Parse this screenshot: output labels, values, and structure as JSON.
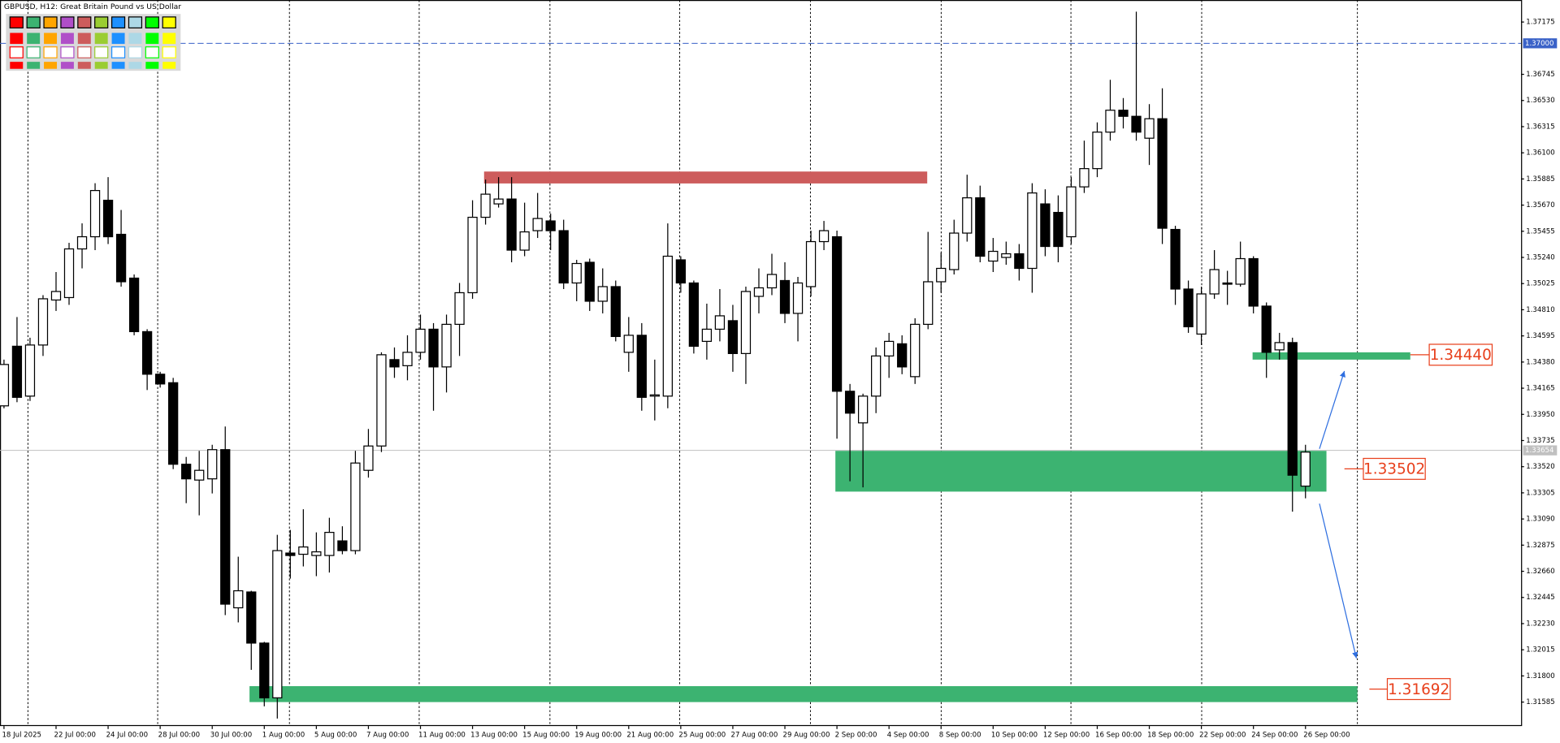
{
  "chart_data": {
    "type": "candlestick",
    "title": "GBPUSD, H12:  Great Britain Pound vs US Dollar",
    "categories": [
      "18 Jul 2025",
      null,
      null,
      null,
      "22 Jul 00:00",
      null,
      null,
      null,
      "24 Jul 00:00",
      null,
      null,
      null,
      "28 Jul 00:00",
      null,
      null,
      null,
      "30 Jul 00:00",
      null,
      null,
      null,
      "1 Aug 00:00",
      null,
      null,
      null,
      "5 Aug 00:00",
      null,
      null,
      null,
      "7 Aug 00:00",
      null,
      null,
      null,
      "11 Aug 00:00",
      null,
      null,
      null,
      "13 Aug 00:00",
      null,
      null,
      null,
      "15 Aug 00:00",
      null,
      null,
      null,
      "19 Aug 00:00",
      null,
      null,
      null,
      "21 Aug 00:00",
      null,
      null,
      null,
      "25 Aug 00:00",
      null,
      null,
      null,
      "27 Aug 00:00",
      null,
      null,
      null,
      "29 Aug 00:00",
      null,
      null,
      null,
      "2 Sep 00:00",
      null,
      null,
      null,
      "4 Sep 00:00",
      null,
      null,
      null,
      "8 Sep 00:00",
      null,
      null,
      null,
      "10 Sep 00:00",
      null,
      null,
      null,
      "12 Sep 00:00",
      null,
      null,
      null,
      "16 Sep 00:00",
      null,
      null,
      null,
      "18 Sep 00:00",
      null,
      null,
      null,
      "22 Sep 00:00",
      null,
      null,
      null,
      "24 Sep 00:00",
      null,
      null,
      null,
      "26 Sep 00:00"
    ],
    "open": [
      1.3402,
      1.3451,
      1.341,
      1.3452,
      1.3489,
      1.3491,
      1.3531,
      1.3541,
      1.3571,
      1.3543,
      1.3507,
      1.3463,
      1.3428,
      1.3421,
      1.3354,
      1.3341,
      1.3342,
      1.3366,
      1.3236,
      1.3249,
      1.3207,
      1.3162,
      1.3281,
      1.328,
      1.3279,
      1.3279,
      1.3291,
      1.3283,
      1.3349,
      1.3369,
      1.344,
      1.3435,
      1.3446,
      1.3465,
      1.3434,
      1.3469,
      1.3495,
      1.3557,
      1.3568,
      1.3572,
      1.353,
      1.3546,
      1.3554,
      1.3546,
      1.3503,
      1.352,
      1.3488,
      1.35,
      1.3446,
      1.346,
      1.341,
      1.341,
      1.3522,
      1.3503,
      1.3455,
      1.3465,
      1.3472,
      1.3445,
      1.3492,
      1.3499,
      1.3505,
      1.3478,
      1.35,
      1.3537,
      1.3541,
      1.3414,
      1.3388,
      1.341,
      1.3443,
      1.3453,
      1.3426,
      1.3469,
      1.3504,
      1.3514,
      1.3544,
      1.3573,
      1.3521,
      1.3524,
      1.3527,
      1.3515,
      1.3568,
      1.3561,
      1.3541,
      1.3582,
      1.3597,
      1.3627,
      1.3645,
      1.364,
      1.3622,
      1.3638,
      1.3547,
      1.3498,
      1.3461,
      1.3494,
      1.3503,
      1.3502,
      1.3523,
      1.3484,
      1.3448,
      1.3454,
      1.3336
    ],
    "high": [
      1.344,
      1.3475,
      1.3458,
      1.3493,
      1.3512,
      1.3536,
      1.3552,
      1.3585,
      1.359,
      1.3563,
      1.351,
      1.3465,
      1.343,
      1.3425,
      1.336,
      1.3365,
      1.337,
      1.3385,
      1.3278,
      1.325,
      1.3208,
      1.3296,
      1.33,
      1.3317,
      1.3298,
      1.331,
      1.3303,
      1.3365,
      1.3383,
      1.3446,
      1.345,
      1.346,
      1.3477,
      1.347,
      1.3477,
      1.3503,
      1.3571,
      1.3588,
      1.359,
      1.359,
      1.3569,
      1.3577,
      1.356,
      1.3555,
      1.3522,
      1.3523,
      1.3515,
      1.3505,
      1.3475,
      1.347,
      1.344,
      1.3552,
      1.3525,
      1.3505,
      1.3486,
      1.3498,
      1.3485,
      1.35,
      1.3515,
      1.3527,
      1.352,
      1.3508,
      1.3546,
      1.3554,
      1.3546,
      1.342,
      1.3412,
      1.345,
      1.3462,
      1.346,
      1.3474,
      1.3545,
      1.3528,
      1.3555,
      1.3592,
      1.3583,
      1.354,
      1.3537,
      1.3535,
      1.3585,
      1.358,
      1.3575,
      1.359,
      1.362,
      1.3635,
      1.367,
      1.3655,
      1.3726,
      1.365,
      1.3663,
      1.355,
      1.3505,
      1.35,
      1.353,
      1.3513,
      1.3537,
      1.3525,
      1.3487,
      1.3462,
      1.3458,
      1.337
    ],
    "low": [
      1.34,
      1.3405,
      1.3406,
      1.3443,
      1.348,
      1.3485,
      1.3515,
      1.353,
      1.3535,
      1.35,
      1.346,
      1.3415,
      1.3417,
      1.335,
      1.3322,
      1.3312,
      1.333,
      1.323,
      1.3224,
      1.3185,
      1.3155,
      1.3145,
      1.326,
      1.327,
      1.3262,
      1.3265,
      1.328,
      1.328,
      1.3343,
      1.3364,
      1.3425,
      1.3423,
      1.344,
      1.3398,
      1.3413,
      1.3443,
      1.349,
      1.3551,
      1.3565,
      1.352,
      1.3525,
      1.354,
      1.353,
      1.3498,
      1.3488,
      1.348,
      1.3478,
      1.3455,
      1.343,
      1.3398,
      1.339,
      1.34,
      1.3495,
      1.3445,
      1.344,
      1.3455,
      1.343,
      1.342,
      1.3478,
      1.3493,
      1.347,
      1.3455,
      1.3492,
      1.353,
      1.3375,
      1.334,
      1.3335,
      1.3396,
      1.3425,
      1.3428,
      1.342,
      1.3465,
      1.3495,
      1.351,
      1.3537,
      1.352,
      1.3512,
      1.3518,
      1.3505,
      1.3495,
      1.3525,
      1.352,
      1.3535,
      1.3577,
      1.359,
      1.362,
      1.363,
      1.362,
      1.36,
      1.3535,
      1.3485,
      1.3462,
      1.3452,
      1.349,
      1.3485,
      1.35,
      1.3478,
      1.3425,
      1.344,
      1.3315,
      1.3326
    ],
    "close": [
      1.3436,
      1.3409,
      1.3452,
      1.349,
      1.3496,
      1.3531,
      1.3541,
      1.3579,
      1.3541,
      1.3504,
      1.3463,
      1.3428,
      1.342,
      1.3354,
      1.3342,
      1.3349,
      1.3366,
      1.3239,
      1.325,
      1.3207,
      1.3162,
      1.3283,
      1.3279,
      1.3286,
      1.3282,
      1.3298,
      1.3283,
      1.3355,
      1.3369,
      1.3444,
      1.3434,
      1.3446,
      1.3465,
      1.3434,
      1.3469,
      1.3495,
      1.3557,
      1.3576,
      1.3572,
      1.353,
      1.3545,
      1.3556,
      1.3546,
      1.3503,
      1.3519,
      1.3488,
      1.35,
      1.3459,
      1.346,
      1.3409,
      1.3411,
      1.3525,
      1.3503,
      1.3451,
      1.3465,
      1.3476,
      1.3445,
      1.3496,
      1.3499,
      1.351,
      1.3478,
      1.3503,
      1.3537,
      1.3546,
      1.3414,
      1.3396,
      1.341,
      1.3443,
      1.3455,
      1.3434,
      1.3469,
      1.3504,
      1.3515,
      1.3544,
      1.3573,
      1.3525,
      1.3529,
      1.3527,
      1.3515,
      1.3577,
      1.3533,
      1.3533,
      1.3582,
      1.3597,
      1.3627,
      1.3645,
      1.364,
      1.3627,
      1.3638,
      1.3548,
      1.3498,
      1.3467,
      1.3494,
      1.3514,
      1.3502,
      1.3523,
      1.3484,
      1.3446,
      1.3454,
      1.3345,
      1.3364
    ],
    "ylim": [
      1.31388,
      1.37356
    ],
    "yticks": [
      {
        "value": 1.31585,
        "label": "1.31585"
      },
      {
        "value": 1.318,
        "label": "1.31800"
      },
      {
        "value": 1.32015,
        "label": "1.32015"
      },
      {
        "value": 1.3223,
        "label": "1.32230"
      },
      {
        "value": 1.32445,
        "label": "1.32445"
      },
      {
        "value": 1.3266,
        "label": "1.32660"
      },
      {
        "value": 1.32875,
        "label": "1.32875"
      },
      {
        "value": 1.3309,
        "label": "1.33090"
      },
      {
        "value": 1.33305,
        "label": "1.33305"
      },
      {
        "value": 1.3352,
        "label": "1.33520"
      },
      {
        "value": 1.33735,
        "label": "1.33735"
      },
      {
        "value": 1.3395,
        "label": "1.33950"
      },
      {
        "value": 1.34165,
        "label": "1.34165"
      },
      {
        "value": 1.3438,
        "label": "1.34380"
      },
      {
        "value": 1.34595,
        "label": "1.34595"
      },
      {
        "value": 1.3481,
        "label": "1.34810"
      },
      {
        "value": 1.35025,
        "label": "1.35025"
      },
      {
        "value": 1.3524,
        "label": "1.35240"
      },
      {
        "value": 1.35455,
        "label": "1.35455"
      },
      {
        "value": 1.3567,
        "label": "1.35670"
      },
      {
        "value": 1.35885,
        "label": "1.35885"
      },
      {
        "value": 1.361,
        "label": "1.36100"
      },
      {
        "value": 1.36315,
        "label": "1.36315"
      },
      {
        "value": 1.3653,
        "label": "1.36530"
      },
      {
        "value": 1.36745,
        "label": "1.36745"
      },
      {
        "value": 1.37175,
        "label": "1.37175"
      }
    ],
    "zones": [
      {
        "color": "#cd5c5c",
        "low": 1.35848,
        "high": 1.35946
      },
      {
        "color": "#3cb371",
        "low": 1.344,
        "high": 1.3446
      },
      {
        "color": "#3cb371",
        "low": 1.33315,
        "high": 1.3365
      },
      {
        "color": "#3cb371",
        "low": 1.31585,
        "high": 1.31716
      }
    ],
    "levels": [
      {
        "value": 1.3444,
        "label": "1.34440",
        "color": "#e8401c"
      },
      {
        "value": 1.33502,
        "label": "1.33502",
        "color": "#e8401c"
      },
      {
        "value": 1.31692,
        "label": "1.31692",
        "color": "#e8401c"
      }
    ],
    "price_lines": [
      {
        "value": 1.37,
        "label": "1.37000",
        "color": "#3a62c8",
        "style": "dashed"
      },
      {
        "value": 1.33654,
        "label": "1.33654",
        "color": "#c0c0c0",
        "style": "solid"
      }
    ]
  }
}
